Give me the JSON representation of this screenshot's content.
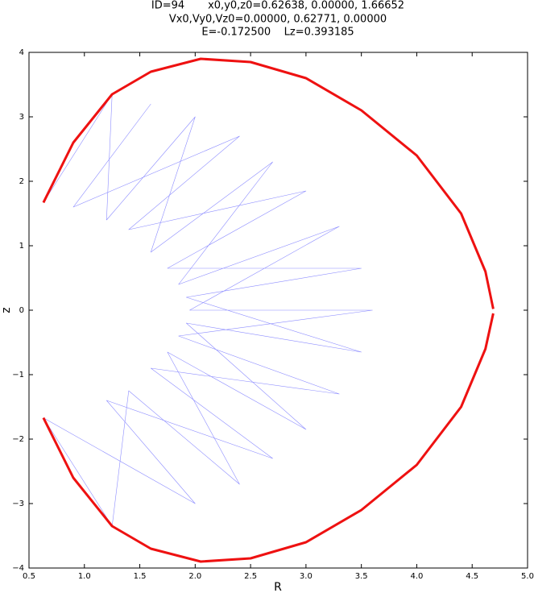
{
  "chart_data": {
    "type": "line",
    "title": [
      "ID=94       x0,y0,z0=0.62638, 0.00000, 1.66652",
      "Vx0,Vy0,Vz0=0.00000, 0.62771, 0.00000",
      "E=-0.172500    Lz=0.393185"
    ],
    "x_label": "R",
    "y_label": "z",
    "xlim": [
      0.5,
      5.0
    ],
    "ylim": [
      -4,
      4
    ],
    "xticks": [
      0.5,
      {
        "value": 1.0,
        "label": "1.0"
      },
      1.5,
      {
        "value": 2.0,
        "label": "2.0"
      },
      2.5,
      {
        "value": 3.0,
        "label": "3.0"
      },
      3.5,
      {
        "value": 4.0,
        "label": "4.0"
      },
      4.5,
      {
        "value": 5.0,
        "label": "5.0"
      }
    ],
    "yticks": [
      {
        "value": -4,
        "label": "−4"
      },
      {
        "value": -3,
        "label": "−3"
      },
      {
        "value": -2,
        "label": "−2"
      },
      {
        "value": -1,
        "label": "−1"
      },
      0,
      1,
      2,
      3,
      4
    ],
    "series": [
      {
        "color": "#0000ff",
        "width": 0.6,
        "opacity": 0.45,
        "x": [
          0.63,
          1.25,
          1.2,
          2.0,
          1.6,
          2.7,
          1.85,
          3.3,
          1.95,
          3.6,
          1.85,
          3.3,
          1.6,
          2.7,
          1.2,
          2.0,
          0.63,
          1.25,
          1.4,
          2.4,
          1.75,
          3.0,
          1.92,
          3.5,
          1.92,
          3.5,
          1.75,
          3.0,
          1.4,
          2.4,
          0.9,
          1.6
        ],
        "values": [
          1.67,
          3.35,
          1.4,
          3.0,
          0.9,
          2.3,
          0.4,
          1.3,
          0,
          0,
          -0.4,
          -1.3,
          -0.9,
          -2.3,
          -1.4,
          -3.0,
          -1.67,
          -3.35,
          -1.25,
          -2.7,
          -0.65,
          -1.85,
          -0.2,
          -0.65,
          0.2,
          0.65,
          0.65,
          1.85,
          1.25,
          2.7,
          1.6,
          3.2
        ]
      },
      {
        "color": "#ee1111",
        "width": 3,
        "x": [
          0.63,
          0.9,
          1.25,
          1.6,
          2.05,
          2.5,
          3.0,
          3.5,
          4.0,
          4.4,
          4.62,
          4.69,
          null,
          4.69,
          4.62,
          4.4,
          4.0,
          3.5,
          3.0,
          2.5,
          2.05,
          1.6,
          1.25,
          0.9,
          0.63
        ],
        "values": [
          1.67,
          2.6,
          3.35,
          3.7,
          3.9,
          3.85,
          3.6,
          3.1,
          2.4,
          1.5,
          0.6,
          0.02,
          null,
          -0.05,
          -0.6,
          -1.5,
          -2.4,
          -3.1,
          -3.6,
          -3.85,
          -3.9,
          -3.7,
          -3.35,
          -2.6,
          -1.67
        ]
      }
    ]
  }
}
